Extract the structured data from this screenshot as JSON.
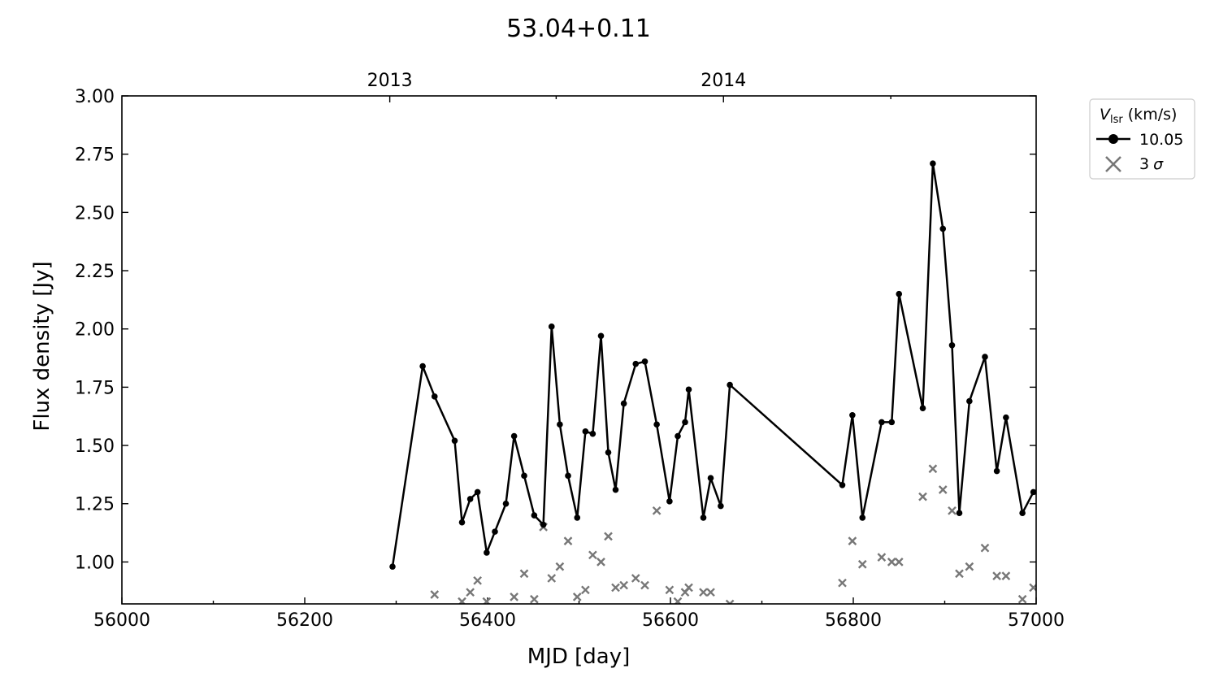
{
  "chart_data": {
    "type": "line",
    "title": "53.04+0.11",
    "xlabel": "MJD [day]",
    "ylabel": "Flux density [Jy]",
    "xlim": [
      56000,
      57000
    ],
    "ylim": [
      0.82,
      3.0
    ],
    "xticks": [
      56000,
      56200,
      56400,
      56600,
      56800,
      57000
    ],
    "xticks_minor": [
      56100,
      56300,
      56500,
      56700,
      56900
    ],
    "yticks": [
      1.0,
      1.25,
      1.5,
      1.75,
      2.0,
      2.25,
      2.5,
      2.75,
      3.0
    ],
    "ytick_labels": [
      "1.00",
      "1.25",
      "1.50",
      "1.75",
      "2.00",
      "2.25",
      "2.50",
      "2.75",
      "3.00"
    ],
    "top_axis": {
      "ticks": [
        {
          "x": 56293,
          "label": "2013"
        },
        {
          "x": 56658,
          "label": "2014"
        }
      ],
      "minor": [
        56475,
        56841
      ]
    },
    "grid": false,
    "legend": {
      "placement": "outside-right",
      "title_symbol": "V",
      "title_subscript": "lsr",
      "title_unit": " (km/s)",
      "entries": [
        {
          "label": "10.05",
          "marker": "line-dot",
          "color": "#000000"
        },
        {
          "label": "3",
          "label_symbol": "σ",
          "marker": "x",
          "color": "#777777"
        }
      ]
    },
    "series": [
      {
        "name": "10.05",
        "color": "#000000",
        "style": "line-dot",
        "x": [
          56296,
          56329,
          56342,
          56364,
          56372,
          56381,
          56389,
          56399,
          56408,
          56420,
          56429,
          56440,
          56451,
          56461,
          56470,
          56479,
          56488,
          56498,
          56507,
          56515,
          56524,
          56532,
          56540,
          56549,
          56562,
          56572,
          56585,
          56599,
          56608,
          56616,
          56620,
          56636,
          56644,
          56655,
          56665,
          56788,
          56799,
          56810,
          56831,
          56842,
          56850,
          56876,
          56887,
          56898,
          56908,
          56916,
          56927,
          56944,
          56957,
          56967,
          56985,
          56997
        ],
        "y": [
          0.98,
          1.84,
          1.71,
          1.52,
          1.17,
          1.27,
          1.3,
          1.04,
          1.13,
          1.25,
          1.54,
          1.37,
          1.2,
          1.16,
          2.01,
          1.59,
          1.37,
          1.19,
          1.56,
          1.55,
          1.97,
          1.47,
          1.31,
          1.68,
          1.85,
          1.86,
          1.59,
          1.26,
          1.54,
          1.6,
          1.74,
          1.19,
          1.36,
          1.24,
          1.76,
          1.33,
          1.63,
          1.19,
          1.6,
          1.6,
          2.15,
          1.66,
          2.71,
          2.43,
          1.93,
          1.21,
          1.69,
          1.88,
          1.39,
          1.62,
          1.21,
          1.3
        ]
      },
      {
        "name": "3 σ",
        "color": "#777777",
        "style": "x",
        "x": [
          56342,
          56372,
          56381,
          56389,
          56399,
          56429,
          56440,
          56451,
          56461,
          56470,
          56479,
          56488,
          56498,
          56507,
          56515,
          56524,
          56532,
          56540,
          56549,
          56562,
          56572,
          56585,
          56599,
          56608,
          56616,
          56620,
          56636,
          56644,
          56665,
          56788,
          56799,
          56810,
          56831,
          56842,
          56850,
          56876,
          56887,
          56898,
          56908,
          56916,
          56927,
          56944,
          56957,
          56967,
          56985,
          56997
        ],
        "y": [
          0.86,
          0.83,
          0.87,
          0.92,
          0.83,
          0.85,
          0.95,
          0.84,
          1.15,
          0.93,
          0.98,
          1.09,
          0.85,
          0.88,
          1.03,
          1.0,
          1.11,
          0.89,
          0.9,
          0.93,
          0.9,
          1.22,
          0.88,
          0.83,
          0.87,
          0.89,
          0.87,
          0.87,
          0.82,
          0.91,
          1.09,
          0.99,
          1.02,
          1.0,
          1.0,
          1.28,
          1.4,
          1.31,
          1.22,
          0.95,
          0.98,
          1.06,
          0.94,
          0.94,
          0.84,
          0.89
        ]
      }
    ]
  }
}
